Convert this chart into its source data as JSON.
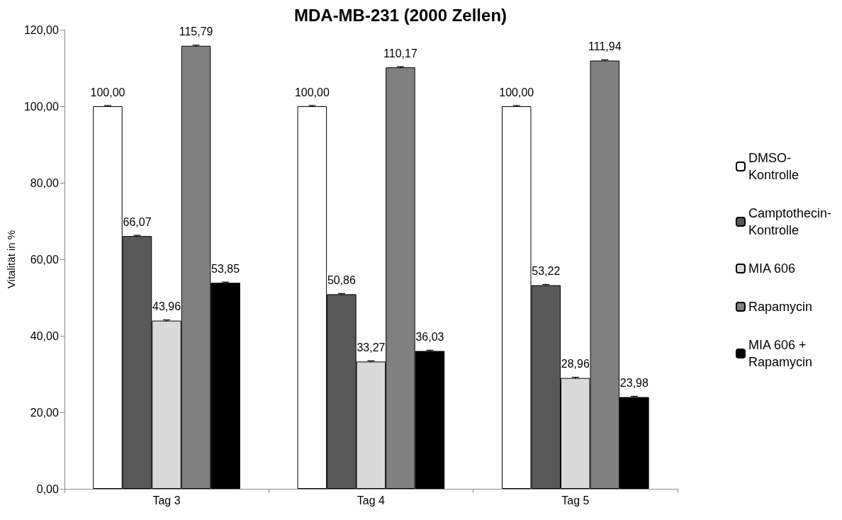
{
  "chart_data": {
    "type": "bar",
    "title": "MDA-MB-231 (2000 Zellen)",
    "ylabel": "Vitalität in %",
    "categories": [
      "Tag 3",
      "Tag 4",
      "Tag 5"
    ],
    "series": [
      {
        "name": "DMSO-Kontrolle",
        "color": "#ffffff",
        "values": [
          100.0,
          100.0,
          100.0
        ],
        "errors": [
          0.2,
          0.2,
          0.2
        ],
        "value_labels": [
          "100,00",
          "100,00",
          "100,00"
        ]
      },
      {
        "name": "Camptothecin-Kontrolle",
        "color": "#595959",
        "values": [
          66.07,
          50.86,
          53.22
        ],
        "errors": [
          0.2,
          0.2,
          0.2
        ],
        "value_labels": [
          "66,07",
          "50,86",
          "53,22"
        ]
      },
      {
        "name": "MIA 606",
        "color": "#d9d9d9",
        "values": [
          43.96,
          33.27,
          28.96
        ],
        "errors": [
          0.2,
          0.2,
          0.2
        ],
        "value_labels": [
          "43,96",
          "33,27",
          "28,96"
        ]
      },
      {
        "name": "Rapamycin",
        "color": "#808080",
        "values": [
          115.79,
          110.17,
          111.94
        ],
        "errors": [
          0.2,
          0.2,
          0.2
        ],
        "value_labels": [
          "115,79",
          "110,17",
          "111,94"
        ]
      },
      {
        "name": "MIA 606 + Rapamycin",
        "color": "#000000",
        "values": [
          53.85,
          36.03,
          23.98
        ],
        "errors": [
          0.2,
          0.2,
          0.2
        ],
        "value_labels": [
          "53,85",
          "36,03",
          "23,98"
        ]
      }
    ],
    "ylim": [
      0,
      120
    ],
    "yticks": [
      {
        "value": 0,
        "label": "0,00"
      },
      {
        "value": 20,
        "label": "20,00"
      },
      {
        "value": 40,
        "label": "40,00"
      },
      {
        "value": 60,
        "label": "60,00"
      },
      {
        "value": 80,
        "label": "80,00"
      },
      {
        "value": 100,
        "label": "100,00"
      },
      {
        "value": 120,
        "label": "120,00"
      }
    ],
    "grid": false,
    "legend": "right"
  }
}
